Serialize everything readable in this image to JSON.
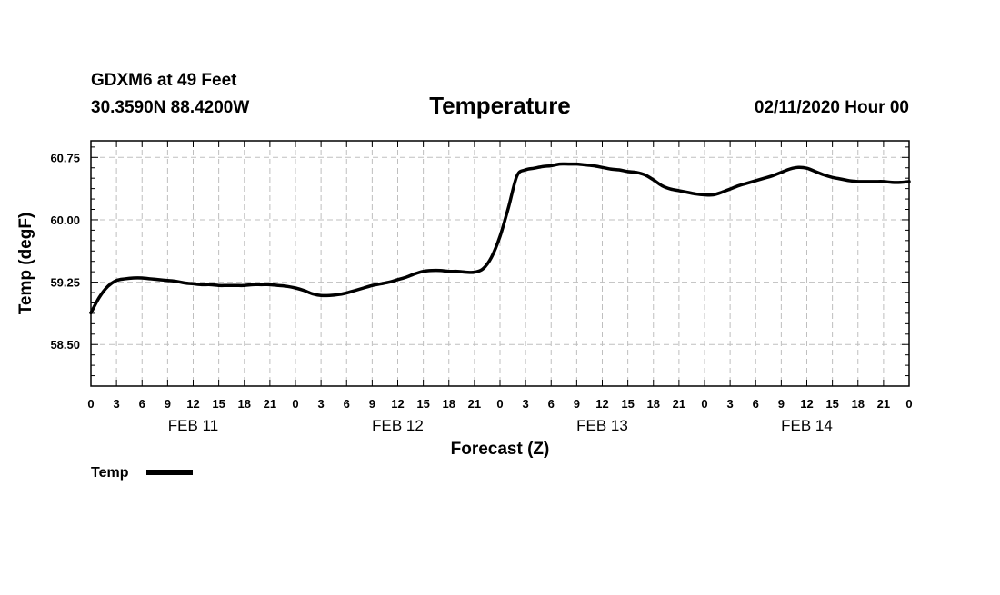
{
  "header": {
    "station": "GDXM6 at 49 Feet",
    "coords": "30.3590N 88.4200W",
    "date": "02/11/2020 Hour 00"
  },
  "colors": {
    "line": "#000000",
    "grid": "#bfbfbf",
    "frame": "#000000"
  },
  "chart_data": {
    "type": "line",
    "title": "Temperature",
    "xlabel": "Forecast (Z)",
    "ylabel": "Temp (degF)",
    "ylim": [
      58.0,
      60.95
    ],
    "xlim": [
      0,
      96
    ],
    "grid": true,
    "yticks": [
      "58.50",
      "59.25",
      "60.00",
      "60.75"
    ],
    "ytick_values": [
      58.5,
      59.25,
      60.0,
      60.75
    ],
    "xtick_hours": [
      0,
      3,
      6,
      9,
      12,
      15,
      18,
      21,
      24,
      27,
      30,
      33,
      36,
      39,
      42,
      45,
      48,
      51,
      54,
      57,
      60,
      63,
      66,
      69,
      72,
      75,
      78,
      81,
      84,
      87,
      90,
      93,
      96
    ],
    "xtick_labels": [
      "0",
      "3",
      "6",
      "9",
      "12",
      "15",
      "18",
      "21",
      "0",
      "3",
      "6",
      "9",
      "12",
      "15",
      "18",
      "21",
      "0",
      "3",
      "6",
      "9",
      "12",
      "15",
      "18",
      "21",
      "0",
      "3",
      "6",
      "9",
      "12",
      "15",
      "18",
      "21",
      "0"
    ],
    "day_labels": [
      {
        "label": "FEB 11",
        "hour": 12
      },
      {
        "label": "FEB 12",
        "hour": 36
      },
      {
        "label": "FEB 13",
        "hour": 60
      },
      {
        "label": "FEB 14",
        "hour": 84
      }
    ],
    "legend_position": "bottom-left",
    "series": [
      {
        "name": "Temp",
        "x": [
          0,
          1,
          2,
          3,
          4,
          5,
          6,
          7,
          8,
          9,
          10,
          11,
          12,
          13,
          14,
          15,
          16,
          17,
          18,
          19,
          20,
          21,
          22,
          23,
          24,
          25,
          26,
          27,
          28,
          29,
          30,
          31,
          32,
          33,
          34,
          35,
          36,
          37,
          38,
          39,
          40,
          41,
          42,
          43,
          44,
          45,
          46,
          47,
          48,
          49,
          50,
          51,
          52,
          53,
          54,
          55,
          56,
          57,
          58,
          59,
          60,
          61,
          62,
          63,
          64,
          65,
          66,
          67,
          68,
          69,
          70,
          71,
          72,
          73,
          74,
          75,
          76,
          77,
          78,
          79,
          80,
          81,
          82,
          83,
          84,
          85,
          86,
          87,
          88,
          89,
          90,
          91,
          92,
          93,
          94,
          95,
          96
        ],
        "values": [
          58.88,
          59.07,
          59.2,
          59.27,
          59.29,
          59.3,
          59.3,
          59.29,
          59.28,
          59.27,
          59.26,
          59.24,
          59.23,
          59.22,
          59.22,
          59.21,
          59.21,
          59.21,
          59.21,
          59.22,
          59.22,
          59.22,
          59.21,
          59.2,
          59.18,
          59.15,
          59.11,
          59.09,
          59.09,
          59.1,
          59.12,
          59.15,
          59.18,
          59.21,
          59.23,
          59.25,
          59.28,
          59.31,
          59.35,
          59.38,
          59.39,
          59.39,
          59.38,
          59.38,
          59.37,
          59.37,
          59.41,
          59.55,
          59.8,
          60.15,
          60.53,
          60.6,
          60.62,
          60.64,
          60.65,
          60.67,
          60.67,
          60.67,
          60.66,
          60.65,
          60.63,
          60.61,
          60.6,
          60.58,
          60.57,
          60.54,
          60.48,
          60.41,
          60.37,
          60.35,
          60.33,
          60.31,
          60.3,
          60.3,
          60.33,
          60.37,
          60.41,
          60.44,
          60.47,
          60.5,
          60.53,
          60.57,
          60.61,
          60.63,
          60.62,
          60.58,
          60.54,
          60.51,
          60.49,
          60.47,
          60.46,
          60.46,
          60.46,
          60.46,
          60.45,
          60.45,
          60.46
        ]
      }
    ]
  }
}
